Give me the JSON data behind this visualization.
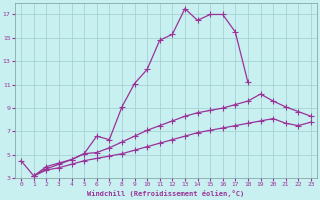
{
  "xlabel": "Windchill (Refroidissement éolien,°C)",
  "bg_color": "#c8f0f0",
  "line_color": "#993399",
  "grid_color": "#9ecece",
  "xlim": [
    -0.5,
    23.5
  ],
  "ylim": [
    3,
    18
  ],
  "yticks": [
    3,
    5,
    7,
    9,
    11,
    13,
    15,
    17
  ],
  "xticks": [
    0,
    1,
    2,
    3,
    4,
    5,
    6,
    7,
    8,
    9,
    10,
    11,
    12,
    13,
    14,
    15,
    16,
    17,
    18,
    19,
    20,
    21,
    22,
    23
  ],
  "line1_x": [
    0,
    1,
    2,
    3,
    4,
    5,
    6,
    7,
    8,
    9,
    10,
    11,
    12,
    13,
    14,
    15,
    16,
    17,
    18
  ],
  "line1_y": [
    4.5,
    3.2,
    4.0,
    4.3,
    4.6,
    5.1,
    6.6,
    6.3,
    9.1,
    11.1,
    12.3,
    14.8,
    15.3,
    17.5,
    16.5,
    17.0,
    17.0,
    15.5,
    11.2
  ],
  "line2_x": [
    1,
    2,
    3,
    4,
    5,
    6,
    7,
    8,
    9,
    10,
    11,
    12,
    13,
    14,
    15,
    16,
    17,
    18,
    19,
    20,
    21,
    22,
    23
  ],
  "line2_y": [
    3.2,
    3.8,
    4.2,
    4.6,
    5.1,
    5.2,
    5.6,
    6.1,
    6.6,
    7.1,
    7.5,
    7.9,
    8.3,
    8.6,
    8.8,
    9.0,
    9.3,
    9.6,
    10.2,
    9.6,
    9.1,
    8.7,
    8.3
  ],
  "line3_x": [
    1,
    2,
    3,
    4,
    5,
    6,
    7,
    8,
    9,
    10,
    11,
    12,
    13,
    14,
    15,
    16,
    17,
    18,
    19,
    20,
    21,
    22,
    23
  ],
  "line3_y": [
    3.2,
    3.7,
    3.9,
    4.2,
    4.5,
    4.7,
    4.9,
    5.1,
    5.4,
    5.7,
    6.0,
    6.3,
    6.6,
    6.9,
    7.1,
    7.3,
    7.5,
    7.7,
    7.9,
    8.1,
    7.7,
    7.5,
    7.8
  ]
}
